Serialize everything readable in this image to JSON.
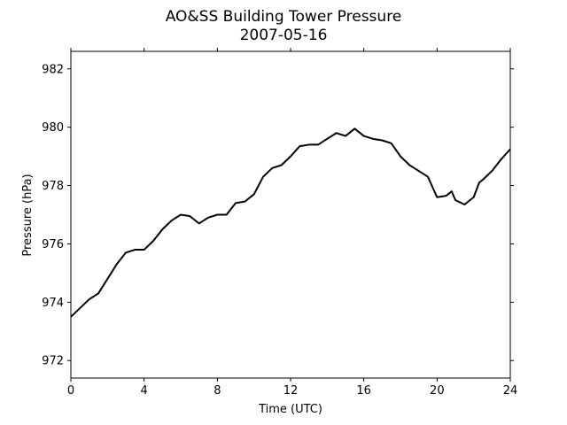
{
  "chart_data": {
    "type": "line",
    "title": "AO&SS Building Tower Pressure",
    "subtitle": "2007-05-16",
    "xlabel": "Time (UTC)",
    "ylabel": "Pressure (hPa)",
    "xlim": [
      0,
      24
    ],
    "ylim": [
      971.4,
      982.6
    ],
    "xticks": [
      0,
      4,
      8,
      12,
      16,
      20,
      24
    ],
    "yticks": [
      972,
      974,
      976,
      978,
      980,
      982
    ],
    "grid": false,
    "line_color": "#000000",
    "series": [
      {
        "x": [
          0,
          0.5,
          1,
          1.5,
          2,
          2.5,
          3,
          3.5,
          4,
          4.5,
          5,
          5.5,
          6,
          6.5,
          7,
          7.5,
          8,
          8.5,
          9,
          9.5,
          10,
          10.5,
          11,
          11.5,
          12,
          12.5,
          13,
          13.5,
          14,
          14.5,
          15,
          15.5,
          16,
          16.5,
          17,
          17.5,
          18,
          18.5,
          19,
          19.5,
          20,
          20.5,
          20.8,
          21,
          21.5,
          22,
          22.3,
          22.5,
          23,
          23.5,
          24
        ],
        "y": [
          973.5,
          973.8,
          974.1,
          974.3,
          974.8,
          975.3,
          975.7,
          975.8,
          975.8,
          976.1,
          976.5,
          976.8,
          977.0,
          976.95,
          976.7,
          976.9,
          977.0,
          977.0,
          977.4,
          977.45,
          977.7,
          978.3,
          978.6,
          978.7,
          979.0,
          979.35,
          979.4,
          979.4,
          979.6,
          979.8,
          979.7,
          979.95,
          979.7,
          979.6,
          979.55,
          979.45,
          979.0,
          978.7,
          978.5,
          978.3,
          977.6,
          977.65,
          977.8,
          977.5,
          977.35,
          977.6,
          978.1,
          978.2,
          978.5,
          978.9,
          979.25
        ]
      }
    ]
  }
}
